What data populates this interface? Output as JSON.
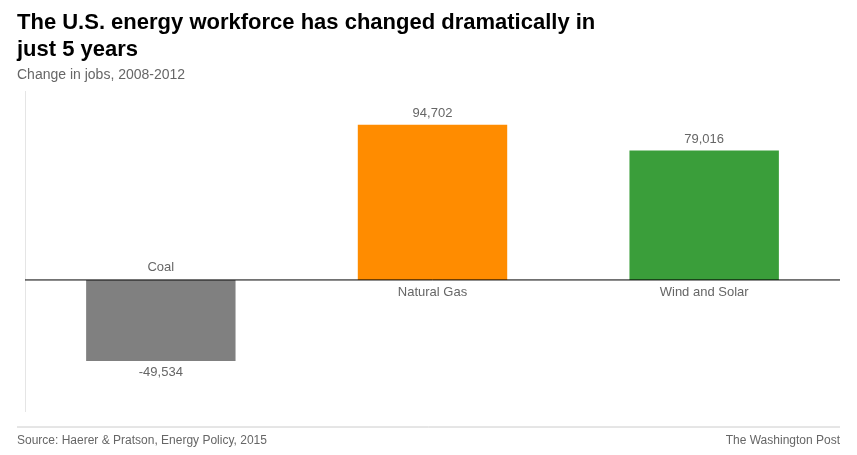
{
  "chart_data": {
    "type": "bar",
    "title": [
      "The U.S. energy workforce has changed dramatically in",
      "just 5 years"
    ],
    "subtitle": "Change in jobs, 2008-2012",
    "categories": [
      "Coal",
      "Natural Gas",
      "Wind and Solar"
    ],
    "values": [
      -49534,
      94702,
      79016
    ],
    "value_labels": [
      "-49,534",
      "94,702",
      "79,016"
    ],
    "colors": [
      "#808080",
      "#FF8C00",
      "#3A9E3A"
    ],
    "data_labels": true,
    "ylim": [
      -80000,
      115000
    ],
    "grid": false,
    "tick_labels": false,
    "annotations": [
      "Source: Haerer & Pratson, Energy Policy, 2015",
      "The Washington Post"
    ]
  }
}
